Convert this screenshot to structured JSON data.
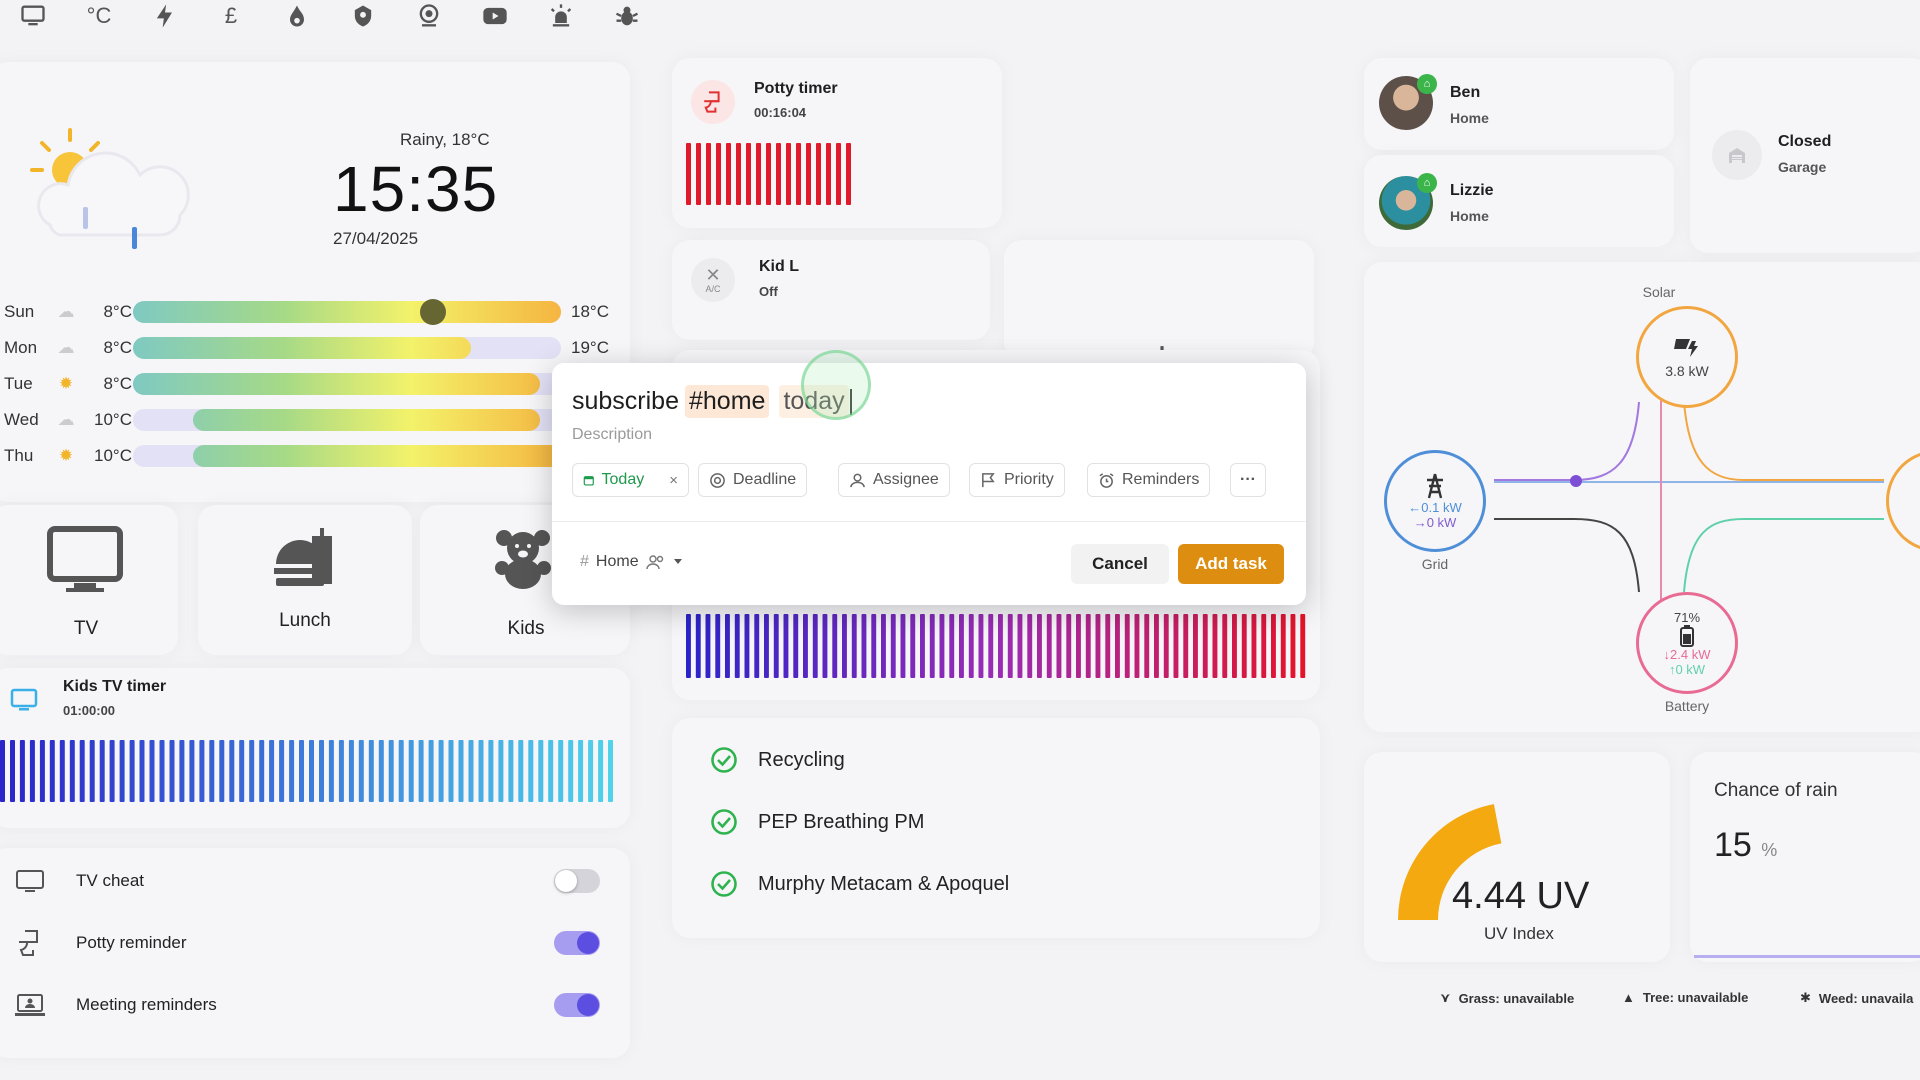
{
  "nav": {
    "icons": [
      "monitor-icon",
      "celsius-icon",
      "lightning-icon",
      "pound-icon",
      "flame-icon",
      "security-icon",
      "webcam-icon",
      "youtube-icon",
      "alarm-light-icon",
      "bug-icon"
    ],
    "celsius_glyph": "°C",
    "pound_glyph": "£"
  },
  "weather": {
    "condition": "Rainy, 18°C",
    "time": "15:35",
    "date": "27/04/2025",
    "forecast": [
      {
        "day": "Sun",
        "low": "8°C",
        "high": "18°C",
        "start": 0.0,
        "end": 1.0,
        "current": 0.7
      },
      {
        "day": "Mon",
        "low": "8°C",
        "high": "19°C",
        "start": 0.0,
        "end": 0.79
      },
      {
        "day": "Tue",
        "low": "8°C",
        "high": "",
        "start": 0.0,
        "end": 0.95
      },
      {
        "day": "Wed",
        "low": "10°C",
        "high": "",
        "start": 0.14,
        "end": 0.95
      },
      {
        "day": "Thu",
        "low": "10°C",
        "high": "",
        "start": 0.14,
        "end": 1.0
      }
    ]
  },
  "tiles": [
    {
      "label": "TV"
    },
    {
      "label": "Lunch"
    },
    {
      "label": "Kids"
    }
  ],
  "kids_tv_timer": {
    "title": "Kids TV timer",
    "time": "01:00:00"
  },
  "toggles": [
    {
      "label": "TV cheat",
      "on": false
    },
    {
      "label": "Potty reminder",
      "on": true
    },
    {
      "label": "Meeting reminders",
      "on": true
    }
  ],
  "potty_timer": {
    "title": "Potty timer",
    "time": "00:16:04"
  },
  "kid_l": {
    "title": "Kid L",
    "state": "Off",
    "icon_text": "A/C"
  },
  "tasks": [
    "Recycling",
    "PEP Breathing PM",
    "Murphy Metacam & Apoquel"
  ],
  "people": [
    {
      "name": "Ben",
      "state": "Home"
    },
    {
      "name": "Lizzie",
      "state": "Home"
    }
  ],
  "garage": {
    "state": "Closed",
    "name": "Garage"
  },
  "energy": {
    "solar": {
      "label": "Solar",
      "value": "3.8 kW"
    },
    "grid": {
      "label": "Grid",
      "import": "←0.1 kW",
      "export": "→0 kW"
    },
    "battery": {
      "label": "Battery",
      "percent": "71%",
      "out": "↓2.4 kW",
      "in": "↑0 kW"
    }
  },
  "uv": {
    "value": "4.44 UV",
    "label": "UV Index",
    "level": 0.44
  },
  "rain": {
    "title": "Chance of rain",
    "value": "15",
    "unit": "%"
  },
  "pollen": [
    "Grass: unavailable",
    "Tree: unavailable",
    "Weed: unavaila"
  ],
  "dialog": {
    "title_text": "subscribe",
    "tag": "#home",
    "date_word": "today",
    "description_placeholder": "Description",
    "chips": {
      "today": "Today",
      "deadline": "Deadline",
      "assignee": "Assignee",
      "priority": "Priority",
      "reminders": "Reminders",
      "more": "···"
    },
    "project": "Home",
    "project_hash": "#",
    "cancel": "Cancel",
    "add": "Add task"
  }
}
